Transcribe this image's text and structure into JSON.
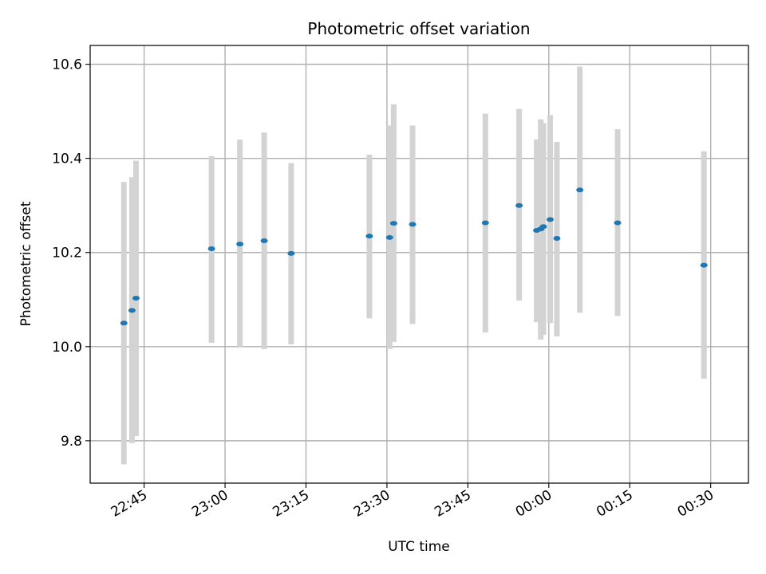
{
  "chart_data": {
    "type": "scatter",
    "title": "Photometric offset variation",
    "xlabel": "UTC time",
    "ylabel": "Photometric offset",
    "xlim": [
      "22:35",
      "00:37"
    ],
    "ylim": [
      9.71,
      10.64
    ],
    "grid": true,
    "x_ticks": [
      "22:45",
      "23:00",
      "23:15",
      "23:30",
      "23:45",
      "00:00",
      "00:15",
      "00:30"
    ],
    "y_ticks": [
      "9.8",
      "10.0",
      "10.2",
      "10.4",
      "10.6"
    ],
    "series": [
      {
        "points": [
          {
            "time": "22:41:15",
            "y": 10.05,
            "err_low": 9.75,
            "err_high": 10.35
          },
          {
            "time": "22:42:45",
            "y": 10.077,
            "err_low": 9.795,
            "err_high": 10.36
          },
          {
            "time": "22:43:30",
            "y": 10.103,
            "err_low": 9.81,
            "err_high": 10.395
          },
          {
            "time": "22:57:30",
            "y": 10.208,
            "err_low": 10.008,
            "err_high": 10.405
          },
          {
            "time": "23:02:45",
            "y": 10.218,
            "err_low": 10.0,
            "err_high": 10.44
          },
          {
            "time": "23:07:15",
            "y": 10.225,
            "err_low": 9.995,
            "err_high": 10.455
          },
          {
            "time": "23:12:15",
            "y": 10.198,
            "err_low": 10.005,
            "err_high": 10.39
          },
          {
            "time": "23:26:45",
            "y": 10.235,
            "err_low": 10.06,
            "err_high": 10.408
          },
          {
            "time": "23:30:30",
            "y": 10.232,
            "err_low": 9.995,
            "err_high": 10.47
          },
          {
            "time": "23:31:15",
            "y": 10.262,
            "err_low": 10.01,
            "err_high": 10.515
          },
          {
            "time": "23:34:45",
            "y": 10.26,
            "err_low": 10.048,
            "err_high": 10.47
          },
          {
            "time": "23:48:15",
            "y": 10.263,
            "err_low": 10.03,
            "err_high": 10.495
          },
          {
            "time": "23:54:30",
            "y": 10.3,
            "err_low": 10.098,
            "err_high": 10.505
          },
          {
            "time": "23:57:45",
            "y": 10.247,
            "err_low": 10.052,
            "err_high": 10.44
          },
          {
            "time": "23:58:30",
            "y": 10.25,
            "err_low": 10.015,
            "err_high": 10.483
          },
          {
            "time": "23:59:00",
            "y": 10.255,
            "err_low": 10.025,
            "err_high": 10.475
          },
          {
            "time": "00:00:15",
            "y": 10.27,
            "err_low": 10.05,
            "err_high": 10.492
          },
          {
            "time": "00:01:30",
            "y": 10.23,
            "err_low": 10.022,
            "err_high": 10.435
          },
          {
            "time": "00:05:45",
            "y": 10.333,
            "err_low": 10.072,
            "err_high": 10.595
          },
          {
            "time": "00:12:45",
            "y": 10.263,
            "err_low": 10.065,
            "err_high": 10.462
          },
          {
            "time": "00:28:45",
            "y": 10.173,
            "err_low": 9.932,
            "err_high": 10.415
          }
        ]
      }
    ]
  }
}
